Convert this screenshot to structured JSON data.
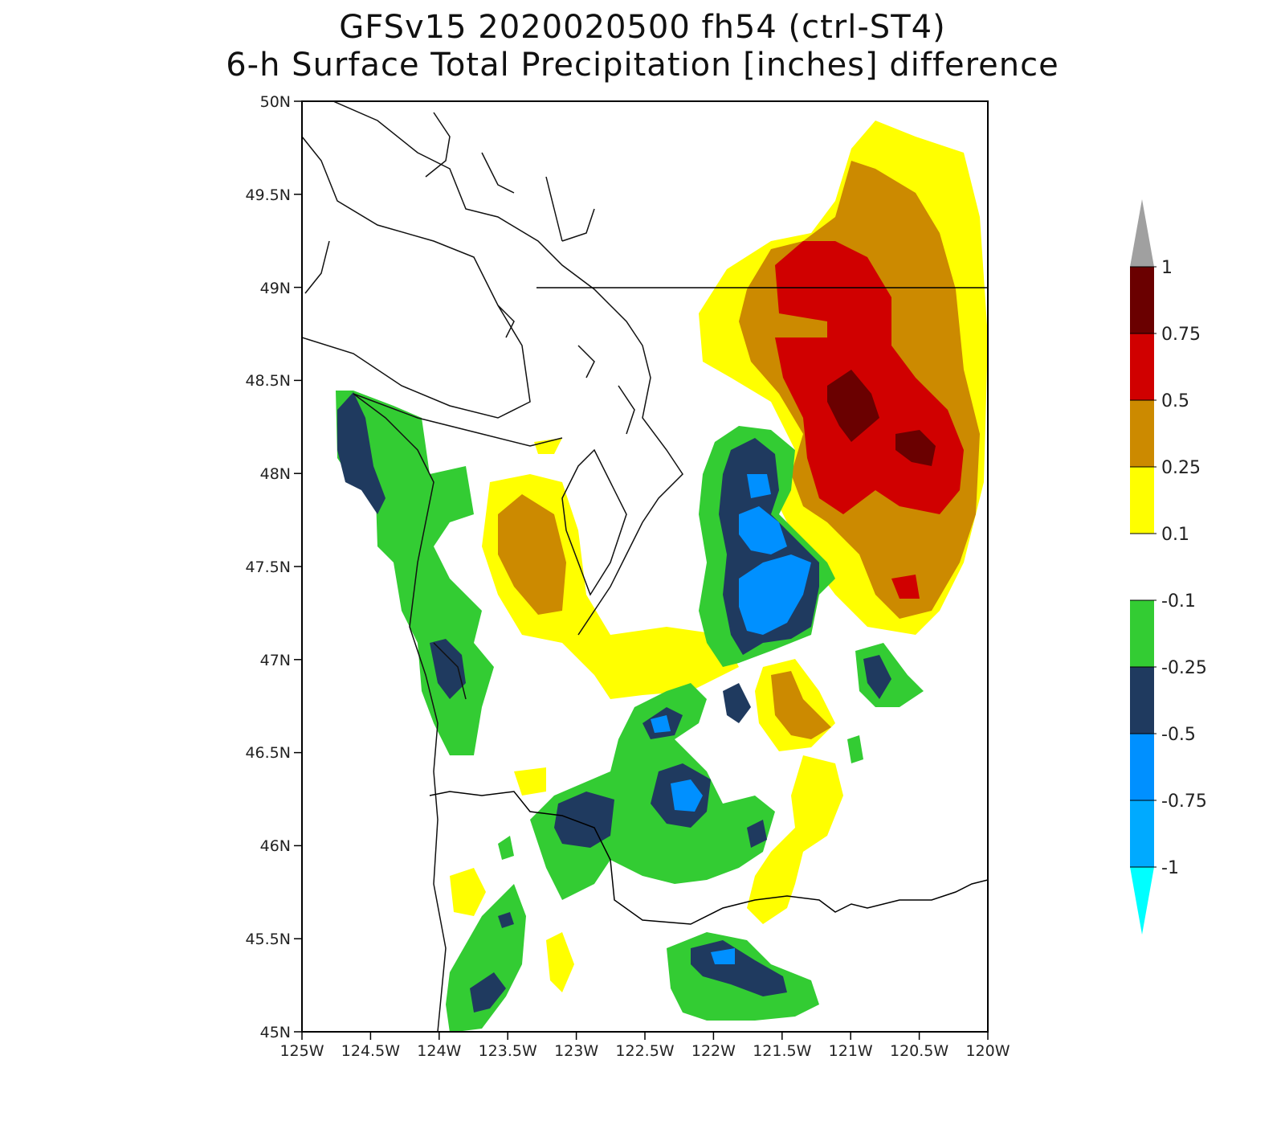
{
  "title": {
    "line1": "GFSv15 2020020500 fh54 (ctrl-ST4)",
    "line2": "6-h Surface Total Precipitation [inches] difference"
  },
  "map": {
    "lon_range": [
      -125,
      -120
    ],
    "lat_range": [
      45,
      50
    ],
    "x_ticks": [
      "125W",
      "124.5W",
      "124W",
      "123.5W",
      "123W",
      "122.5W",
      "122W",
      "121.5W",
      "121W",
      "120.5W",
      "120W"
    ],
    "y_ticks": [
      "45N",
      "45.5N",
      "46N",
      "46.5N",
      "47N",
      "47.5N",
      "48N",
      "48.5N",
      "49N",
      "49.5N",
      "50N"
    ]
  },
  "colorbar": {
    "labels": [
      "1",
      "0.75",
      "0.5",
      "0.25",
      "0.1",
      "-0.1",
      "-0.25",
      "-0.5",
      "-0.75",
      "-1"
    ],
    "colors": {
      "above_1": "#a0a0a0",
      "0.75_1": "#6a0000",
      "0.5_0.75": "#d00000",
      "0.25_0.5": "#cc8a00",
      "0.1_0.25": "#ffff00",
      "neutral": "#ffffff",
      "-0.25_-0.1": "#33cc33",
      "-0.5_-0.25": "#1f3a5f",
      "-0.75_-0.5": "#0090ff",
      "-1_-0.75": "#00aaff",
      "below_-1": "#00ffff"
    }
  }
}
